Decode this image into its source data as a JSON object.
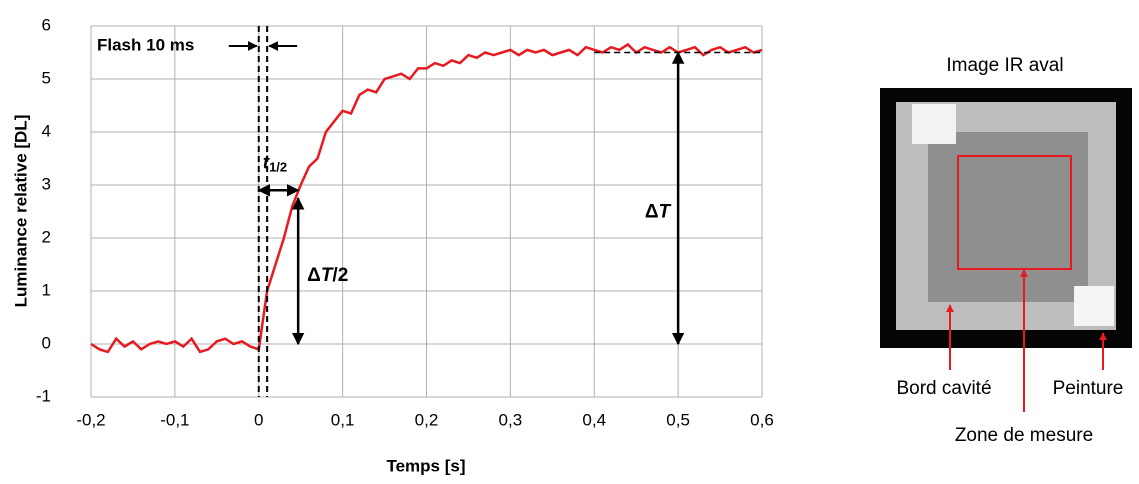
{
  "chart_data": {
    "type": "line",
    "xlabel": "Temps [s]",
    "ylabel": "Luminance relative [DL]",
    "x": [
      -0.2,
      -0.19,
      -0.18,
      -0.17,
      -0.16,
      -0.15,
      -0.14,
      -0.13,
      -0.12,
      -0.11,
      -0.1,
      -0.09,
      -0.08,
      -0.07,
      -0.06,
      -0.05,
      -0.04,
      -0.03,
      -0.02,
      -0.01,
      0,
      0.01,
      0.02,
      0.03,
      0.04,
      0.05,
      0.06,
      0.07,
      0.08,
      0.09,
      0.1,
      0.11,
      0.12,
      0.13,
      0.14,
      0.15,
      0.16,
      0.17,
      0.18,
      0.19,
      0.2,
      0.21,
      0.22,
      0.23,
      0.24,
      0.25,
      0.26,
      0.27,
      0.28,
      0.29,
      0.3,
      0.31,
      0.32,
      0.33,
      0.34,
      0.35,
      0.36,
      0.37,
      0.38,
      0.39,
      0.4,
      0.41,
      0.42,
      0.43,
      0.44,
      0.45,
      0.46,
      0.47,
      0.48,
      0.49,
      0.5,
      0.51,
      0.52,
      0.53,
      0.54,
      0.55,
      0.56,
      0.57,
      0.58,
      0.59,
      0.6
    ],
    "series": [
      {
        "color": "#e8191f",
        "values": [
          0.0,
          -0.1,
          -0.15,
          0.1,
          -0.05,
          0.05,
          -0.1,
          0.0,
          0.05,
          0.0,
          0.05,
          -0.05,
          0.1,
          -0.15,
          -0.1,
          0.05,
          0.1,
          0.0,
          0.05,
          -0.05,
          -0.1,
          1.0,
          1.5,
          2.0,
          2.6,
          3.0,
          3.35,
          3.5,
          4.0,
          4.2,
          4.4,
          4.35,
          4.7,
          4.8,
          4.75,
          5.0,
          5.05,
          5.1,
          5.0,
          5.2,
          5.2,
          5.3,
          5.25,
          5.35,
          5.3,
          5.45,
          5.4,
          5.5,
          5.45,
          5.5,
          5.55,
          5.45,
          5.55,
          5.5,
          5.55,
          5.45,
          5.5,
          5.55,
          5.45,
          5.6,
          5.55,
          5.5,
          5.6,
          5.55,
          5.65,
          5.5,
          5.6,
          5.55,
          5.5,
          5.6,
          5.5,
          5.55,
          5.6,
          5.45,
          5.55,
          5.6,
          5.5,
          5.55,
          5.6,
          5.5,
          5.55
        ]
      }
    ],
    "xlim": [
      -0.2,
      0.6
    ],
    "xticks": [
      {
        "value": -0.2,
        "label": "-0,2"
      },
      {
        "value": -0.1,
        "label": "-0,1"
      },
      0,
      {
        "value": 0.1,
        "label": "0,1"
      },
      {
        "value": 0.2,
        "label": "0,2"
      },
      {
        "value": 0.3,
        "label": "0,3"
      },
      {
        "value": 0.4,
        "label": "0,4"
      },
      {
        "value": 0.5,
        "label": "0,5"
      },
      {
        "value": 0.6,
        "label": "0,6"
      }
    ],
    "ylim": [
      -1,
      6
    ],
    "yticks": [
      -1,
      0,
      1,
      2,
      3,
      4,
      5,
      6
    ],
    "grid": true,
    "annotations": {
      "flash_label": "Flash 10 ms",
      "flash": [
        0,
        0.01
      ],
      "t_half_label": [
        "t",
        "1/2"
      ],
      "t_half": 0.047,
      "t_half_y": 2.9,
      "half_label": [
        "Δ",
        "T",
        "/2"
      ],
      "delta_T": 5.5,
      "delta_T_x": 0.5,
      "delta_T_label": [
        "Δ",
        "T"
      ],
      "plateau_from": 0.4
    }
  },
  "image": {
    "title": "Image IR aval",
    "labels": [
      "Bord cavité",
      "Zone de mesure",
      "Peinture"
    ]
  }
}
